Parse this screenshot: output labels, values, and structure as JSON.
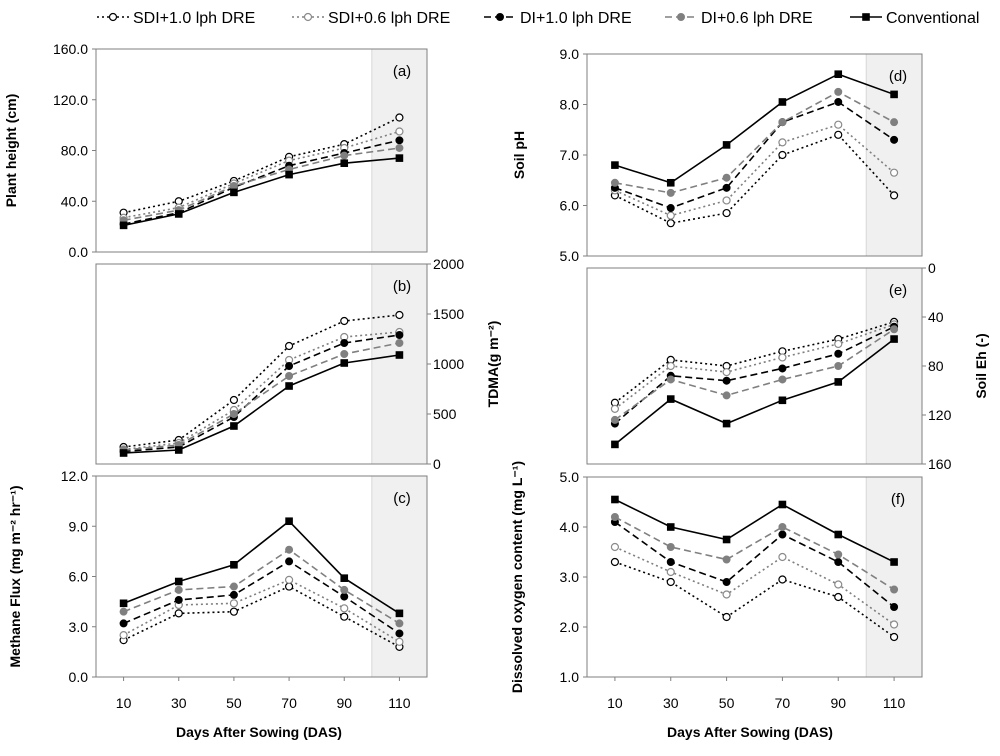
{
  "legend": {
    "items": [
      {
        "label": "SDI+1.0 lph DRE",
        "color": "#000000",
        "marker": "open-circle",
        "dash": "2,3"
      },
      {
        "label": "SDI+0.6 lph DRE",
        "color": "#7f7f7f",
        "marker": "open-circle-gray",
        "dash": "2,3"
      },
      {
        "label": "DI+1.0 lph DRE",
        "color": "#000000",
        "marker": "filled-circle",
        "dash": "7,4"
      },
      {
        "label": "DI+0.6 lph DRE",
        "color": "#808080",
        "marker": "filled-circle-gray",
        "dash": "7,4"
      },
      {
        "label": "Conventional",
        "color": "#000000",
        "marker": "filled-square",
        "dash": ""
      }
    ]
  },
  "chart_data": [
    {
      "id": "a",
      "type": "line",
      "panel_label": "(a)",
      "x": [
        10,
        30,
        50,
        70,
        90,
        110
      ],
      "xlabel": "",
      "ylabel": "Plant height (cm)",
      "ylim": [
        0,
        160
      ],
      "yticks": [
        "0.0",
        "40.0",
        "80.0",
        "120.0",
        "160.0"
      ],
      "y_axis_side": "left",
      "shaded_region": [
        100,
        120
      ],
      "series": [
        {
          "name": "SDI+1.0 lph DRE",
          "values": [
            31,
            40,
            56,
            75,
            85,
            106
          ]
        },
        {
          "name": "SDI+0.6 lph DRE",
          "values": [
            27,
            35,
            54,
            72,
            82,
            95
          ]
        },
        {
          "name": "DI+1.0 lph DRE",
          "values": [
            22,
            31,
            51,
            68,
            78,
            88
          ]
        },
        {
          "name": "DI+0.6 lph DRE",
          "values": [
            25,
            33,
            52,
            65,
            76,
            82
          ]
        },
        {
          "name": "Conventional",
          "values": [
            21,
            30,
            47,
            61,
            70,
            74
          ]
        }
      ]
    },
    {
      "id": "b",
      "type": "line",
      "panel_label": "(b)",
      "x": [
        10,
        30,
        50,
        70,
        90,
        110
      ],
      "xlabel": "",
      "ylabel": "TDMA(g m⁻²)",
      "ylim": [
        0,
        2000
      ],
      "yticks": [
        "0",
        "500",
        "1000",
        "1500",
        "2000"
      ],
      "y_axis_side": "right",
      "shaded_region": [
        100,
        120
      ],
      "series": [
        {
          "name": "SDI+1.0 lph DRE",
          "values": [
            170,
            240,
            640,
            1180,
            1430,
            1490
          ]
        },
        {
          "name": "SDI+0.6 lph DRE",
          "values": [
            145,
            210,
            540,
            1040,
            1270,
            1320
          ]
        },
        {
          "name": "DI+1.0 lph DRE",
          "values": [
            125,
            170,
            470,
            980,
            1210,
            1290
          ]
        },
        {
          "name": "DI+0.6 lph DRE",
          "values": [
            140,
            190,
            500,
            880,
            1100,
            1210
          ]
        },
        {
          "name": "Conventional",
          "values": [
            110,
            140,
            380,
            780,
            1010,
            1090
          ]
        }
      ]
    },
    {
      "id": "c",
      "type": "line",
      "panel_label": "(c)",
      "x": [
        10,
        30,
        50,
        70,
        90,
        110
      ],
      "xticks": [
        "10",
        "30",
        "50",
        "70",
        "90",
        "110"
      ],
      "xlabel": "",
      "ylabel": "Methane Flux (mg m⁻² hr⁻¹)",
      "ylim": [
        0,
        12
      ],
      "yticks": [
        "0.0",
        "3.0",
        "6.0",
        "9.0",
        "12.0"
      ],
      "y_axis_side": "left",
      "shaded_region": [
        100,
        120
      ],
      "series": [
        {
          "name": "SDI+1.0 lph DRE",
          "values": [
            2.2,
            3.8,
            3.9,
            5.4,
            3.6,
            1.8
          ]
        },
        {
          "name": "SDI+0.6 lph DRE",
          "values": [
            2.5,
            4.3,
            4.4,
            5.8,
            4.1,
            2.1
          ]
        },
        {
          "name": "DI+1.0 lph DRE",
          "values": [
            3.2,
            4.6,
            4.9,
            6.9,
            4.8,
            2.6
          ]
        },
        {
          "name": "DI+0.6 lph DRE",
          "values": [
            3.9,
            5.2,
            5.4,
            7.6,
            5.2,
            3.2
          ]
        },
        {
          "name": "Conventional",
          "values": [
            4.4,
            5.7,
            6.7,
            9.3,
            5.9,
            3.8
          ]
        }
      ]
    },
    {
      "id": "d",
      "type": "line",
      "panel_label": "(d)",
      "x": [
        10,
        30,
        50,
        70,
        90,
        110
      ],
      "xlabel": "",
      "ylabel": "Soil pH",
      "ylim": [
        5,
        9
      ],
      "yticks": [
        "5.0",
        "6.0",
        "7.0",
        "8.0",
        "9.0"
      ],
      "y_axis_side": "left",
      "shaded_region": [
        100,
        120
      ],
      "series": [
        {
          "name": "SDI+1.0 lph DRE",
          "values": [
            6.2,
            5.65,
            5.85,
            7.0,
            7.4,
            6.2
          ]
        },
        {
          "name": "SDI+0.6 lph DRE",
          "values": [
            6.3,
            5.8,
            6.1,
            7.25,
            7.6,
            6.65
          ]
        },
        {
          "name": "DI+1.0 lph DRE",
          "values": [
            6.35,
            5.95,
            6.35,
            7.65,
            8.05,
            7.3
          ]
        },
        {
          "name": "DI+0.6 lph DRE",
          "values": [
            6.45,
            6.25,
            6.55,
            7.65,
            8.25,
            7.65
          ]
        },
        {
          "name": "Conventional",
          "values": [
            6.8,
            6.45,
            7.2,
            8.05,
            8.6,
            8.2
          ]
        }
      ]
    },
    {
      "id": "e",
      "type": "line",
      "panel_label": "(e)",
      "x": [
        10,
        30,
        50,
        70,
        90,
        110
      ],
      "xlabel": "",
      "ylabel": "Soil Eh (-)",
      "ylim": [
        160,
        0
      ],
      "yticks": [
        "0",
        "40",
        "80",
        "120",
        "160"
      ],
      "y_axis_side": "right",
      "y_inverted": true,
      "shaded_region": [
        100,
        120
      ],
      "series": [
        {
          "name": "SDI+1.0 lph DRE",
          "values": [
            110,
            75,
            80,
            68,
            58,
            44
          ]
        },
        {
          "name": "SDI+0.6 lph DRE",
          "values": [
            115,
            80,
            85,
            73,
            62,
            46
          ]
        },
        {
          "name": "DI+1.0 lph DRE",
          "values": [
            127,
            88,
            92,
            82,
            70,
            48
          ]
        },
        {
          "name": "DI+0.6 lph DRE",
          "values": [
            124,
            91,
            104,
            91,
            80,
            50
          ]
        },
        {
          "name": "Conventional",
          "values": [
            144,
            107,
            127,
            108,
            93,
            58
          ]
        }
      ]
    },
    {
      "id": "f",
      "type": "line",
      "panel_label": "(f)",
      "x": [
        10,
        30,
        50,
        70,
        90,
        110
      ],
      "xticks": [
        "10",
        "30",
        "50",
        "70",
        "90",
        "110"
      ],
      "xlabel": "",
      "ylabel": "Dissolved oxygen content (mg L⁻¹)",
      "ylim": [
        1,
        5
      ],
      "yticks": [
        "1.0",
        "2.0",
        "3.0",
        "4.0",
        "5.0"
      ],
      "y_axis_side": "left",
      "shaded_region": [
        100,
        120
      ],
      "series": [
        {
          "name": "SDI+1.0 lph DRE",
          "values": [
            3.3,
            2.9,
            2.2,
            2.95,
            2.6,
            1.8
          ]
        },
        {
          "name": "SDI+0.6 lph DRE",
          "values": [
            3.6,
            3.1,
            2.65,
            3.4,
            2.85,
            2.05
          ]
        },
        {
          "name": "DI+1.0 lph DRE",
          "values": [
            4.1,
            3.3,
            2.9,
            3.85,
            3.3,
            2.4
          ]
        },
        {
          "name": "DI+0.6 lph DRE",
          "values": [
            4.2,
            3.6,
            3.35,
            4.0,
            3.45,
            2.75
          ]
        },
        {
          "name": "Conventional",
          "values": [
            4.55,
            4.0,
            3.75,
            4.45,
            3.85,
            3.3
          ]
        }
      ]
    }
  ],
  "x_axis_titles": {
    "left": "Days After Sowing (DAS)",
    "right": "Days After Sowing (DAS)"
  }
}
